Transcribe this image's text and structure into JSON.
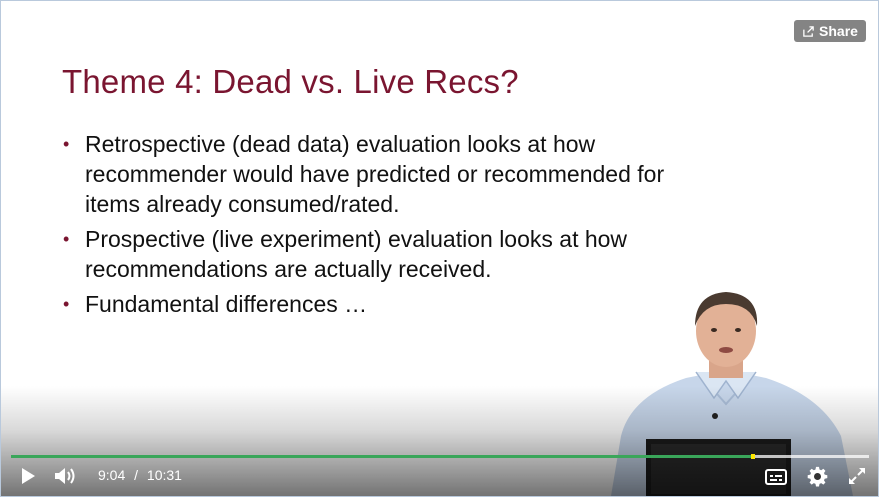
{
  "slide": {
    "title": "Theme 4: Dead vs. Live Recs?",
    "bullets": [
      "Retrospective (dead data) evaluation looks at how recommender would have predicted or recommended for items already consumed/rated.",
      "Prospective (live experiment) evaluation looks at how recommendations are actually received.",
      "Fundamental differences …"
    ],
    "bullet_glyph": "•"
  },
  "share": {
    "label": "Share"
  },
  "player": {
    "current_time": "9:04",
    "separator": "/",
    "duration": "10:31",
    "progress_fraction": 0.862,
    "accent_color": "#3aa65a"
  },
  "icons": {
    "share": "share-icon",
    "play": "play-icon",
    "volume": "volume-icon",
    "captions": "captions-icon",
    "settings": "gear-icon",
    "fullscreen": "fullscreen-icon"
  },
  "colors": {
    "title": "#7a1530",
    "text": "#111111"
  }
}
